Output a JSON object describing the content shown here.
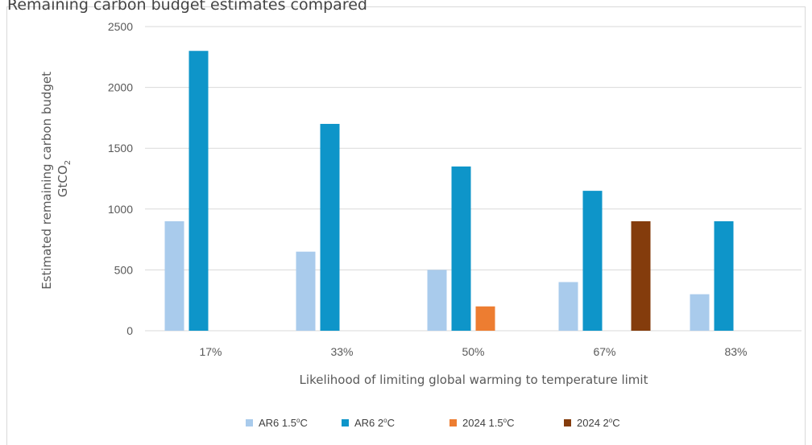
{
  "top_caption": "Remaining carbon budget estimates compared",
  "colors": {
    "ar6_15": "#a9cbec",
    "ar6_2": "#0e95c9",
    "y2024_15": "#ed7d31",
    "y2024_2": "#843c0c",
    "grid": "#d9d9d9"
  },
  "chart_data": {
    "type": "bar",
    "title": "",
    "xlabel": "Likelihood of limiting global warming to temperature limit",
    "ylabel_line1": "Estimated remaining carbon budget",
    "ylabel_line2_main": "GtCO",
    "ylabel_line2_sub": "2",
    "ylim": [
      0,
      2500
    ],
    "yticks": [
      0,
      500,
      1000,
      1500,
      2000,
      2500
    ],
    "grid": true,
    "legend_position": "bottom",
    "categories": [
      "17%",
      "33%",
      "50%",
      "67%",
      "83%"
    ],
    "series": [
      {
        "name": "AR6 1.5°C",
        "legend_main": "AR6 1.5",
        "legend_sup": "o",
        "legend_unit": "C",
        "color_key": "ar6_15",
        "values": [
          900,
          650,
          500,
          400,
          300
        ]
      },
      {
        "name": "AR6 2°C",
        "legend_main": "AR6 2",
        "legend_sup": "o",
        "legend_unit": "C",
        "color_key": "ar6_2",
        "values": [
          2300,
          1700,
          1350,
          1150,
          900
        ]
      },
      {
        "name": "2024 1.5°C",
        "legend_main": "2024 1.5",
        "legend_sup": "o",
        "legend_unit": "C",
        "color_key": "y2024_15",
        "values": [
          null,
          null,
          200,
          null,
          null
        ]
      },
      {
        "name": "2024 2°C",
        "legend_main": "2024 2",
        "legend_sup": "o",
        "legend_unit": "C",
        "color_key": "y2024_2",
        "values": [
          null,
          null,
          null,
          900,
          null
        ]
      }
    ]
  }
}
